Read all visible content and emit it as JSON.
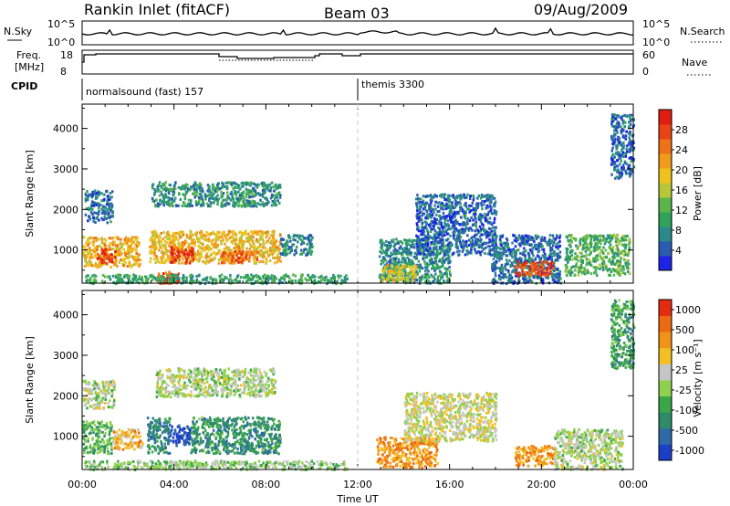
{
  "header": {
    "station": "Rankin Inlet (fitACF)",
    "beam": "Beam 03",
    "date": "09/Aug/2009"
  },
  "top_panels": {
    "nsky_label": "N.Sky",
    "nsky_ticks": [
      "10^5",
      "10^0"
    ],
    "nsearch_label": "N.Search",
    "nsearch_ticks": [
      "10^5",
      "10^0"
    ],
    "freq_label": "Freq.",
    "freq_unit": "[MHz]",
    "freq_ticks": [
      "18",
      "8"
    ],
    "nave_label": "Nave",
    "nave_ticks": [
      "60",
      "0"
    ],
    "cpid_label": "CPID",
    "cpid_segments": [
      {
        "name": "normalsound (fast) 157",
        "start_hour": 0,
        "end_hour": 12
      },
      {
        "name": "themis 3300",
        "start_hour": 12,
        "end_hour": 24
      }
    ]
  },
  "chart_data": [
    {
      "type": "heatmap",
      "name": "power-panel",
      "xlabel": "Time UT",
      "ylabel": "Slant Range [km]",
      "x_ticks": [
        "00:00",
        "04:00",
        "08:00",
        "12:00",
        "16:00",
        "20:00",
        "00:00"
      ],
      "xlim_hours": [
        0,
        24
      ],
      "y_ticks": [
        1000,
        2000,
        3000,
        4000
      ],
      "ylim": [
        180,
        4600
      ],
      "colorbar_label": "Power [dB]",
      "colorbar_ticks": [
        "4",
        "8",
        "12",
        "16",
        "20",
        "24",
        "28"
      ],
      "colorbar_colors": [
        "#1c23e6",
        "#2a5bb0",
        "#2a8a8a",
        "#2fa35a",
        "#5ab54a",
        "#b8c73a",
        "#f0c31c",
        "#f19b1a",
        "#ef7218",
        "#ea4414",
        "#e01d10"
      ],
      "regions": [
        {
          "t0": 0.1,
          "t1": 1.3,
          "r0": 1700,
          "r1": 2500,
          "level": 0.15
        },
        {
          "t0": 0.0,
          "t1": 2.5,
          "r0": 600,
          "r1": 1350,
          "level": 0.65
        },
        {
          "t0": 0.6,
          "t1": 1.4,
          "r0": 700,
          "r1": 1050,
          "level": 0.92
        },
        {
          "t0": 3.0,
          "t1": 8.6,
          "r0": 2100,
          "r1": 2700,
          "level": 0.25
        },
        {
          "t0": 2.9,
          "t1": 8.6,
          "r0": 700,
          "r1": 1500,
          "level": 0.62
        },
        {
          "t0": 3.8,
          "t1": 4.8,
          "r0": 700,
          "r1": 1100,
          "level": 0.95
        },
        {
          "t0": 6.0,
          "t1": 7.6,
          "r0": 700,
          "r1": 1000,
          "level": 0.85
        },
        {
          "t0": 3.2,
          "t1": 4.2,
          "r0": 200,
          "r1": 500,
          "level": 0.88
        },
        {
          "t0": 8.6,
          "t1": 10.0,
          "r0": 900,
          "r1": 1400,
          "level": 0.2
        },
        {
          "t0": 12.9,
          "t1": 16.0,
          "r0": 200,
          "r1": 1300,
          "level": 0.22
        },
        {
          "t0": 13.0,
          "t1": 14.5,
          "r0": 250,
          "r1": 650,
          "level": 0.55
        },
        {
          "t0": 14.5,
          "t1": 18.0,
          "r0": 900,
          "r1": 2400,
          "level": 0.12
        },
        {
          "t0": 17.8,
          "t1": 20.8,
          "r0": 200,
          "r1": 1400,
          "level": 0.15
        },
        {
          "t0": 18.8,
          "t1": 20.5,
          "r0": 400,
          "r1": 750,
          "level": 0.9
        },
        {
          "t0": 21.0,
          "t1": 23.8,
          "r0": 400,
          "r1": 1400,
          "level": 0.35
        },
        {
          "t0": 23.0,
          "t1": 24.0,
          "r0": 2800,
          "r1": 4400,
          "level": 0.12
        },
        {
          "t0": 0.0,
          "t1": 11.5,
          "r0": 200,
          "r1": 420,
          "level": 0.3
        }
      ]
    },
    {
      "type": "heatmap",
      "name": "velocity-panel",
      "xlabel": "Time UT",
      "ylabel": "Slant Range [km]",
      "x_ticks": [
        "00:00",
        "04:00",
        "08:00",
        "12:00",
        "16:00",
        "20:00",
        "00:00"
      ],
      "xlim_hours": [
        0,
        24
      ],
      "y_ticks": [
        1000,
        2000,
        3000,
        4000
      ],
      "ylim": [
        180,
        4600
      ],
      "colorbar_label": "Velocity [m s⁻¹]",
      "colorbar_ticks": [
        "1000",
        "500",
        "100",
        "25",
        "-25",
        "-100",
        "-500",
        "-1000"
      ],
      "colorbar_colors": [
        "#1c3fc8",
        "#2f6aa8",
        "#2e8b6a",
        "#3aa64a",
        "#8fd14f",
        "#c6c6c6",
        "#f3c024",
        "#f19318",
        "#ec6a12",
        "#e32c10"
      ],
      "regions": [
        {
          "t0": 0.0,
          "t1": 1.4,
          "r0": 1700,
          "r1": 2400,
          "level": 0.5
        },
        {
          "t0": 0.0,
          "t1": 1.3,
          "r0": 600,
          "r1": 1400,
          "level": 0.35
        },
        {
          "t0": 1.3,
          "t1": 2.6,
          "r0": 700,
          "r1": 1200,
          "level": 0.72
        },
        {
          "t0": 2.8,
          "t1": 3.8,
          "r0": 600,
          "r1": 1500,
          "level": 0.2
        },
        {
          "t0": 3.8,
          "t1": 4.7,
          "r0": 800,
          "r1": 1300,
          "level": 0.03
        },
        {
          "t0": 4.7,
          "t1": 8.6,
          "r0": 600,
          "r1": 1500,
          "level": 0.25
        },
        {
          "t0": 3.2,
          "t1": 8.4,
          "r0": 2000,
          "r1": 2700,
          "level": 0.5
        },
        {
          "t0": 12.8,
          "t1": 15.5,
          "r0": 250,
          "r1": 1000,
          "level": 0.78
        },
        {
          "t0": 14.0,
          "t1": 18.0,
          "r0": 900,
          "r1": 2100,
          "level": 0.55
        },
        {
          "t0": 18.8,
          "t1": 20.6,
          "r0": 300,
          "r1": 800,
          "level": 0.78
        },
        {
          "t0": 20.5,
          "t1": 23.5,
          "r0": 200,
          "r1": 1200,
          "level": 0.5
        },
        {
          "t0": 23.0,
          "t1": 24.0,
          "r0": 2700,
          "r1": 4400,
          "level": 0.3
        },
        {
          "t0": 0.0,
          "t1": 11.5,
          "r0": 200,
          "r1": 420,
          "level": 0.45
        }
      ]
    }
  ]
}
